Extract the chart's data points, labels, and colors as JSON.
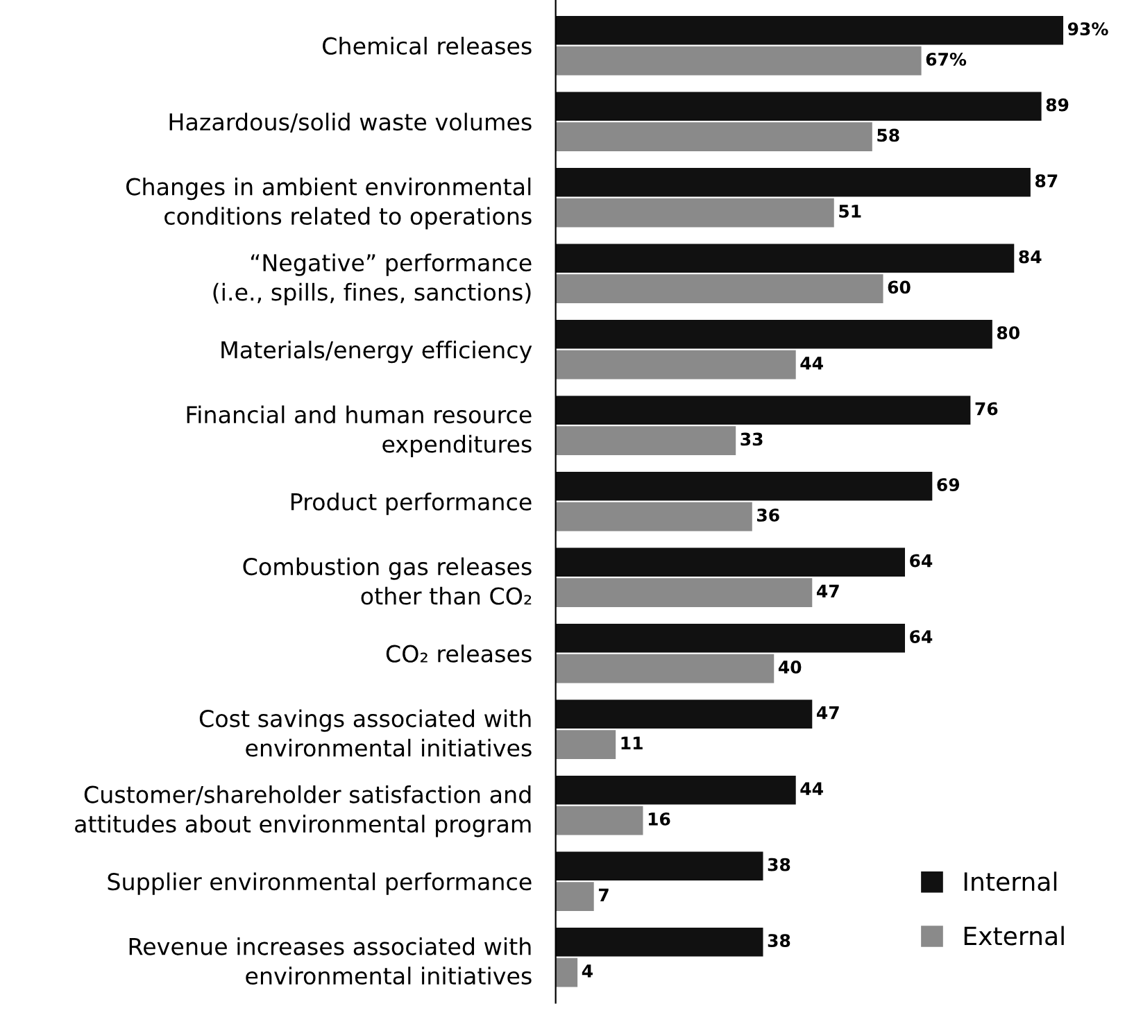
{
  "chart_data": {
    "type": "bar",
    "orientation": "horizontal",
    "legend": "bottom right",
    "data_labels": true,
    "categories": [
      "Chemical releases",
      "Hazardous/solid waste volumes",
      "Changes in ambient environmental\nconditions related to operations",
      "“Negative” performance\n(i.e., spills, fines, sanctions)",
      "Materials/energy efficiency",
      "Financial and human resource\nexpenditures",
      "Product performance",
      "Combustion gas releases\nother than CO₂",
      "CO₂ releases",
      "Cost savings associated with\nenvironmental initiatives",
      "Customer/shareholder satisfaction and\nattitudes about environmental program",
      "Supplier environmental performance",
      "Revenue increases associated with\nenvironmental initiatives"
    ],
    "series": [
      {
        "name": "Internal",
        "color": "#111111",
        "values": [
          93,
          89,
          87,
          84,
          80,
          76,
          69,
          64,
          64,
          47,
          44,
          38,
          38
        ],
        "value_labels": [
          "93%",
          "89",
          "87",
          "84",
          "80",
          "76",
          "69",
          "64",
          "64",
          "47",
          "44",
          "38",
          "38"
        ]
      },
      {
        "name": "External",
        "color": "#8a8a8a",
        "values": [
          67,
          58,
          51,
          60,
          44,
          33,
          36,
          47,
          40,
          11,
          16,
          7,
          4
        ],
        "value_labels": [
          "67%",
          "58",
          "51",
          "60",
          "44",
          "33",
          "36",
          "47",
          "40",
          "11",
          "16",
          "7",
          "4"
        ]
      }
    ]
  }
}
